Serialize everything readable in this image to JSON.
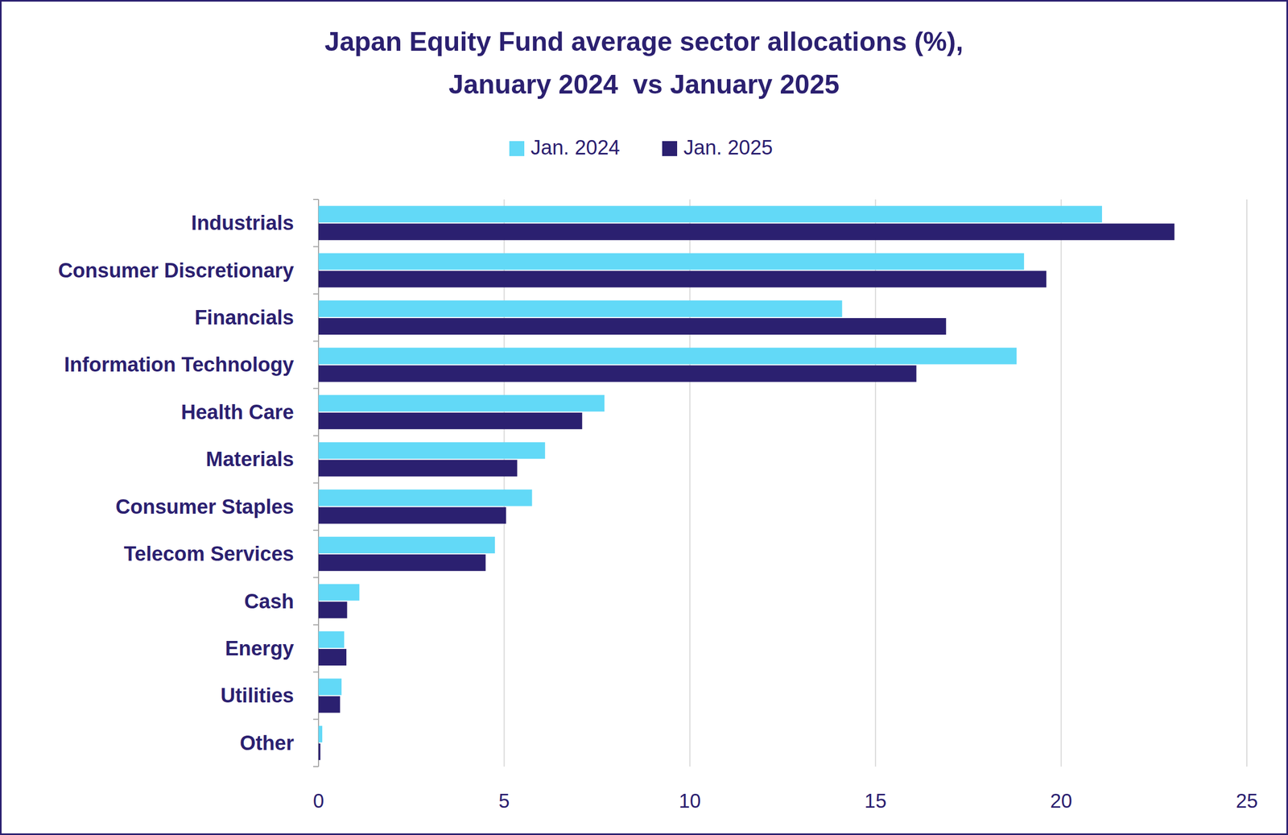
{
  "chart_data": {
    "type": "bar",
    "orientation": "horizontal",
    "title": "Japan Equity Fund average sector allocations (%),\nJanuary 2024  vs January 2025",
    "categories": [
      "Industrials",
      "Consumer Discretionary",
      "Financials",
      "Information Technology",
      "Health Care",
      "Materials",
      "Consumer Staples",
      "Telecom Services",
      "Cash",
      "Energy",
      "Utilities",
      "Other"
    ],
    "series": [
      {
        "name": "Jan. 2024",
        "color": "#62d9f7",
        "values": [
          21.1,
          19.0,
          14.1,
          18.8,
          7.7,
          6.1,
          5.75,
          4.75,
          1.1,
          0.69,
          0.62,
          0.1
        ]
      },
      {
        "name": "Jan. 2025",
        "color": "#2b2070",
        "values": [
          23.05,
          19.6,
          16.9,
          16.1,
          7.1,
          5.35,
          5.05,
          4.5,
          0.77,
          0.75,
          0.58,
          0.05
        ]
      }
    ],
    "xlim": [
      0,
      25
    ],
    "xticks": [
      0,
      5,
      10,
      15,
      20,
      25
    ],
    "grid": true,
    "legend": "top"
  }
}
